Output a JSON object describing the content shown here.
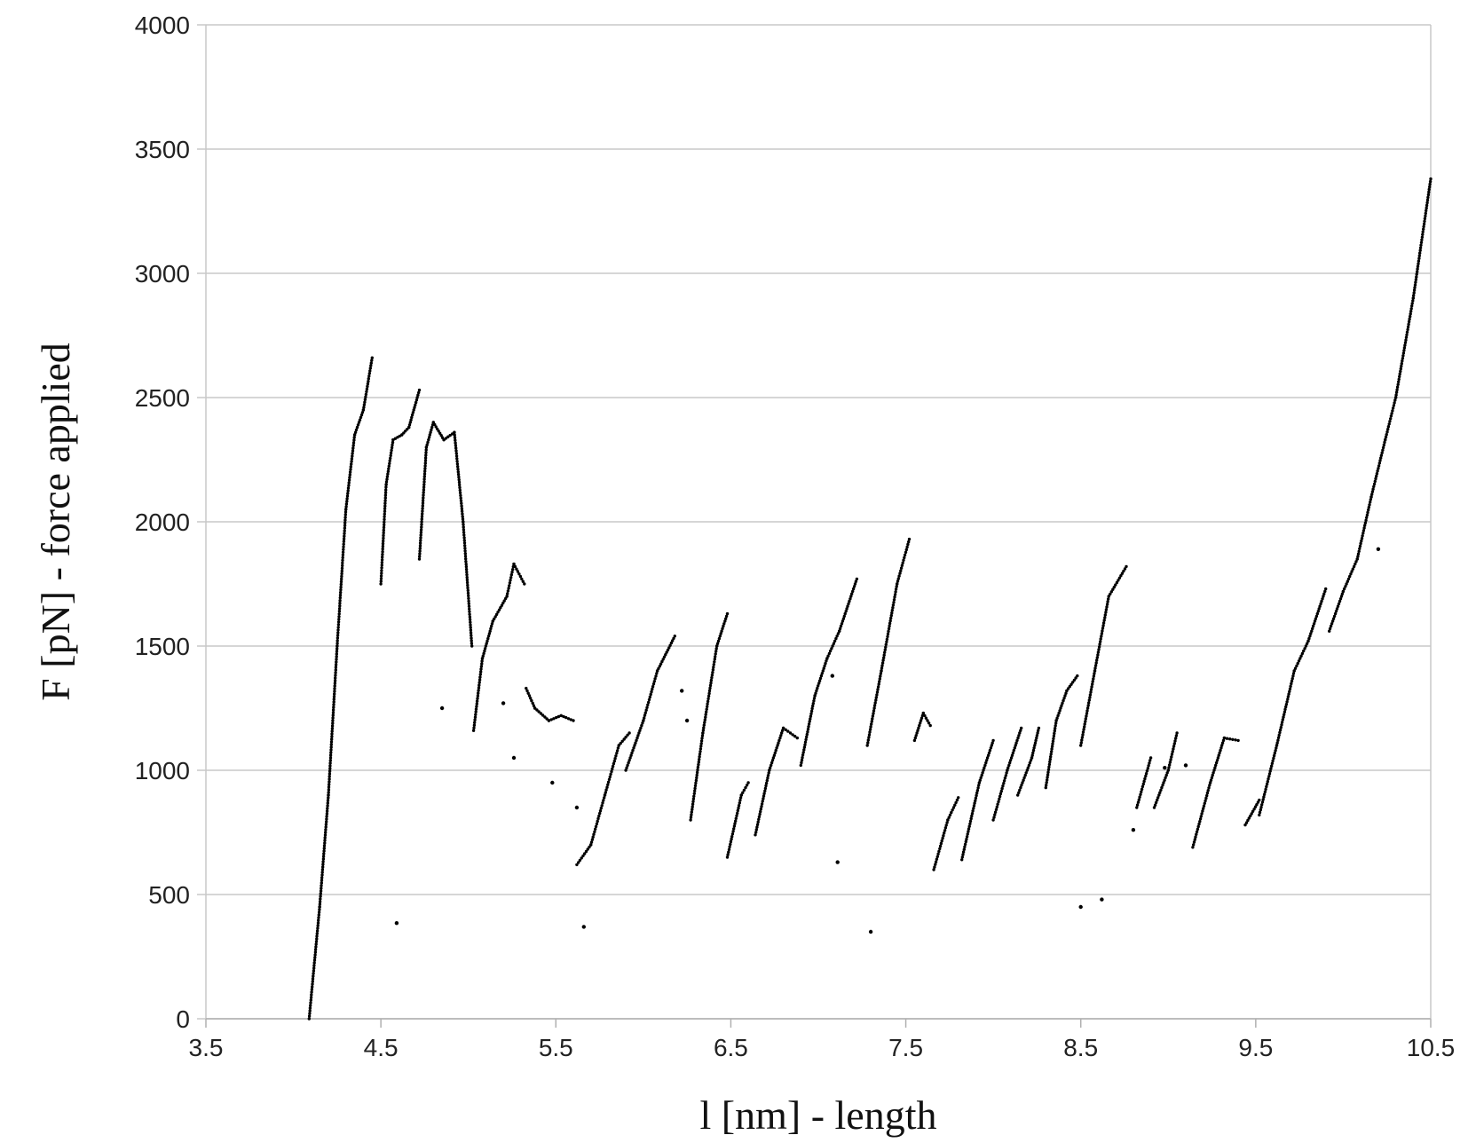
{
  "chart_data": {
    "type": "scatter",
    "title": "",
    "xlabel": "l [nm] - length",
    "ylabel": "F [pN] - force applied",
    "xlim": [
      3.5,
      10.5
    ],
    "ylim": [
      0,
      4000
    ],
    "x_ticks": [
      "3.5",
      "4.5",
      "5.5",
      "6.5",
      "7.5",
      "8.5",
      "9.5",
      "10.5"
    ],
    "y_ticks": [
      "0",
      "500",
      "1000",
      "1500",
      "2000",
      "2500",
      "3000",
      "3500",
      "4000"
    ],
    "grid": "horizontal",
    "legend": "none",
    "point_color": "#000000",
    "grid_color": "#c8c8c8",
    "series": [
      {
        "segments": [
          [
            [
              4.09,
              0
            ],
            [
              4.15,
              450
            ],
            [
              4.2,
              900
            ],
            [
              4.25,
              1500
            ],
            [
              4.3,
              2050
            ],
            [
              4.35,
              2350
            ],
            [
              4.4,
              2450
            ],
            [
              4.45,
              2660
            ]
          ],
          [
            [
              4.5,
              1750
            ],
            [
              4.53,
              2150
            ],
            [
              4.57,
              2330
            ],
            [
              4.62,
              2350
            ],
            [
              4.66,
              2380
            ],
            [
              4.72,
              2530
            ]
          ],
          [
            [
              4.72,
              1850
            ],
            [
              4.76,
              2300
            ],
            [
              4.8,
              2400
            ],
            [
              4.86,
              2330
            ],
            [
              4.92,
              2360
            ],
            [
              4.97,
              2000
            ],
            [
              5.02,
              1500
            ]
          ],
          [
            [
              5.03,
              1160
            ],
            [
              5.08,
              1450
            ],
            [
              5.14,
              1600
            ],
            [
              5.22,
              1700
            ],
            [
              5.26,
              1830
            ],
            [
              5.32,
              1750
            ]
          ],
          [
            [
              5.33,
              1330
            ],
            [
              5.38,
              1250
            ],
            [
              5.46,
              1200
            ],
            [
              5.53,
              1220
            ],
            [
              5.6,
              1200
            ]
          ],
          [
            [
              5.62,
              620
            ],
            [
              5.7,
              700
            ],
            [
              5.78,
              900
            ],
            [
              5.86,
              1100
            ],
            [
              5.92,
              1150
            ]
          ],
          [
            [
              5.9,
              1000
            ],
            [
              6.0,
              1200
            ],
            [
              6.08,
              1400
            ],
            [
              6.18,
              1540
            ]
          ],
          [
            [
              6.27,
              800
            ],
            [
              6.34,
              1150
            ],
            [
              6.42,
              1500
            ],
            [
              6.48,
              1630
            ]
          ],
          [
            [
              6.48,
              650
            ],
            [
              6.56,
              900
            ],
            [
              6.6,
              950
            ]
          ],
          [
            [
              6.64,
              740
            ],
            [
              6.72,
              1000
            ],
            [
              6.8,
              1170
            ],
            [
              6.88,
              1130
            ]
          ],
          [
            [
              6.9,
              1020
            ],
            [
              6.98,
              1300
            ],
            [
              7.05,
              1450
            ],
            [
              7.12,
              1560
            ],
            [
              7.22,
              1770
            ]
          ],
          [
            [
              7.28,
              1100
            ],
            [
              7.36,
              1400
            ],
            [
              7.45,
              1750
            ],
            [
              7.52,
              1930
            ]
          ],
          [
            [
              7.55,
              1120
            ],
            [
              7.6,
              1230
            ],
            [
              7.64,
              1180
            ]
          ],
          [
            [
              7.66,
              600
            ],
            [
              7.74,
              800
            ],
            [
              7.8,
              890
            ]
          ],
          [
            [
              7.82,
              640
            ],
            [
              7.92,
              950
            ],
            [
              8.0,
              1120
            ]
          ],
          [
            [
              8.0,
              800
            ],
            [
              8.08,
              1000
            ],
            [
              8.16,
              1170
            ]
          ],
          [
            [
              8.14,
              900
            ],
            [
              8.22,
              1050
            ],
            [
              8.26,
              1170
            ]
          ],
          [
            [
              8.3,
              930
            ],
            [
              8.36,
              1200
            ],
            [
              8.42,
              1320
            ],
            [
              8.48,
              1380
            ]
          ],
          [
            [
              8.5,
              1100
            ],
            [
              8.58,
              1400
            ],
            [
              8.66,
              1700
            ],
            [
              8.76,
              1820
            ]
          ],
          [
            [
              8.82,
              850
            ],
            [
              8.9,
              1050
            ]
          ],
          [
            [
              8.92,
              850
            ],
            [
              9.0,
              1000
            ],
            [
              9.05,
              1150
            ]
          ],
          [
            [
              9.14,
              690
            ],
            [
              9.24,
              950
            ],
            [
              9.32,
              1130
            ],
            [
              9.4,
              1120
            ]
          ],
          [
            [
              9.44,
              780
            ],
            [
              9.52,
              880
            ]
          ],
          [
            [
              9.52,
              820
            ],
            [
              9.62,
              1100
            ],
            [
              9.72,
              1400
            ],
            [
              9.8,
              1520
            ],
            [
              9.9,
              1730
            ]
          ],
          [
            [
              9.92,
              1560
            ],
            [
              10.0,
              1720
            ],
            [
              10.08,
              1850
            ],
            [
              10.16,
              2100
            ],
            [
              10.24,
              2330
            ],
            [
              10.3,
              2500
            ],
            [
              10.4,
              2900
            ],
            [
              10.5,
              3380
            ]
          ]
        ],
        "points": [
          [
            4.59,
            385
          ],
          [
            4.85,
            1250
          ],
          [
            5.2,
            1270
          ],
          [
            5.26,
            1050
          ],
          [
            5.48,
            950
          ],
          [
            5.62,
            850
          ],
          [
            5.66,
            370
          ],
          [
            6.22,
            1320
          ],
          [
            6.25,
            1200
          ],
          [
            7.08,
            1380
          ],
          [
            7.11,
            630
          ],
          [
            7.3,
            350
          ],
          [
            8.5,
            450
          ],
          [
            8.62,
            480
          ],
          [
            8.8,
            760
          ],
          [
            8.98,
            1010
          ],
          [
            9.1,
            1020
          ],
          [
            10.2,
            1890
          ]
        ]
      }
    ]
  }
}
